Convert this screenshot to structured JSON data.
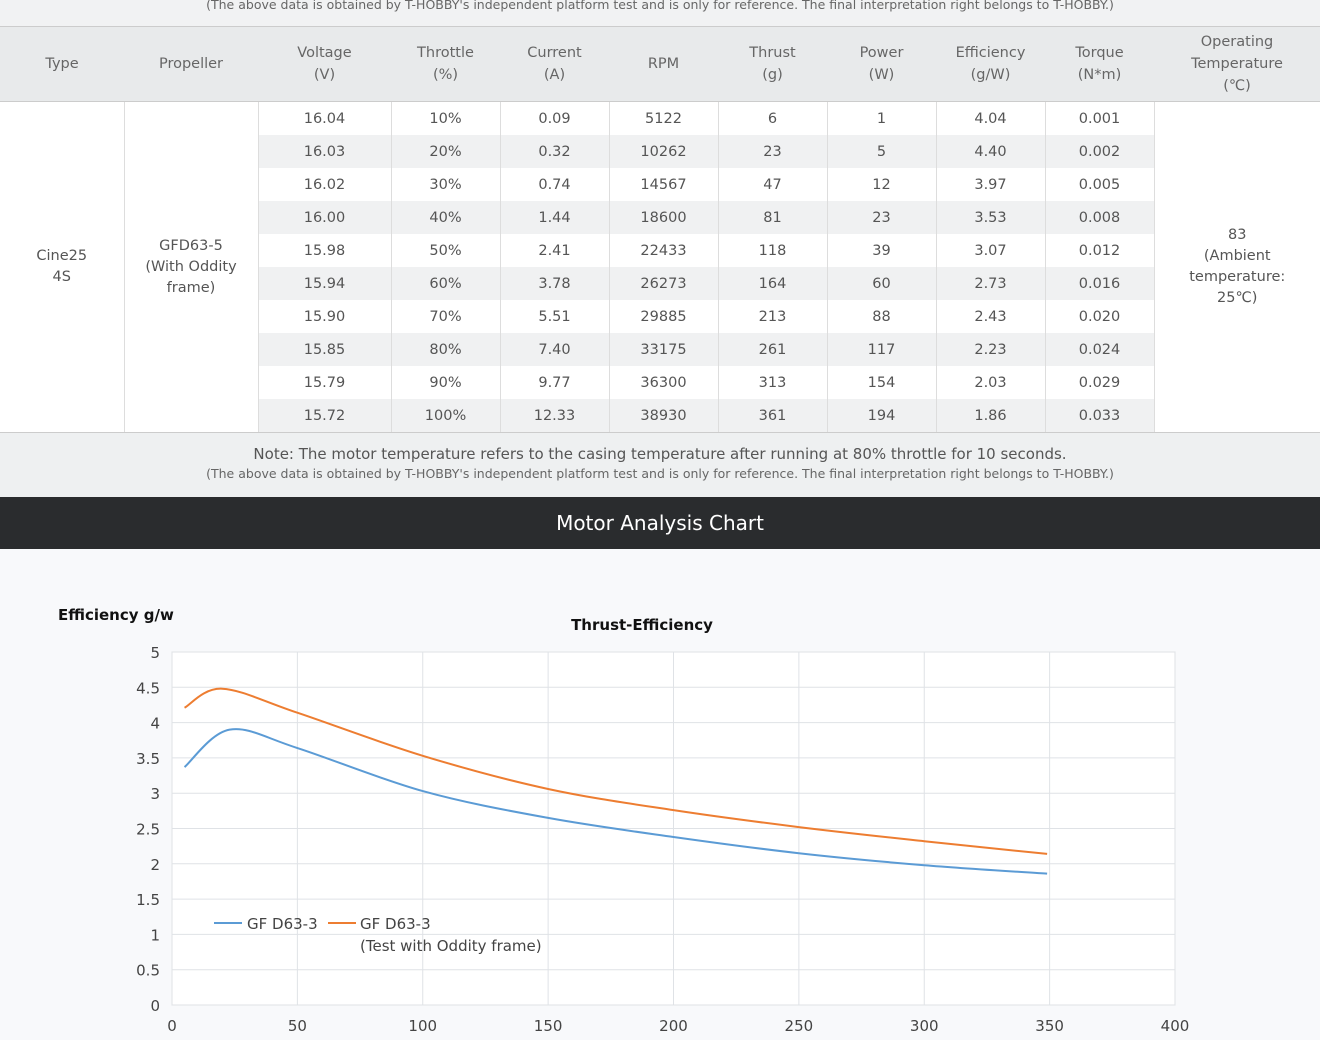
{
  "top_note": "(The above data is obtained by T-HOBBY's independent platform test and is only for reference. The final interpretation right belongs to T-HOBBY.)",
  "table": {
    "headers": [
      [
        "Type"
      ],
      [
        "Propeller"
      ],
      [
        "Voltage",
        "(V)"
      ],
      [
        "Throttle",
        "(%)"
      ],
      [
        "Current",
        "(A)"
      ],
      [
        "RPM"
      ],
      [
        "Thrust",
        "(g)"
      ],
      [
        "Power",
        "(W)"
      ],
      [
        "Efficiency",
        "(g/W)"
      ],
      [
        "Torque",
        "(N*m)"
      ],
      [
        "Operating",
        "Temperature",
        "(℃)"
      ]
    ],
    "type": [
      "Cine25",
      "4S"
    ],
    "propeller": [
      "GFD63-5",
      "(With Oddity",
      "frame)"
    ],
    "temperature": [
      "83",
      "(Ambient",
      "temperature:",
      "25℃)"
    ],
    "rows": [
      [
        "16.04",
        "10%",
        "0.09",
        "5122",
        "6",
        "1",
        "4.04",
        "0.001"
      ],
      [
        "16.03",
        "20%",
        "0.32",
        "10262",
        "23",
        "5",
        "4.40",
        "0.002"
      ],
      [
        "16.02",
        "30%",
        "0.74",
        "14567",
        "47",
        "12",
        "3.97",
        "0.005"
      ],
      [
        "16.00",
        "40%",
        "1.44",
        "18600",
        "81",
        "23",
        "3.53",
        "0.008"
      ],
      [
        "15.98",
        "50%",
        "2.41",
        "22433",
        "118",
        "39",
        "3.07",
        "0.012"
      ],
      [
        "15.94",
        "60%",
        "3.78",
        "26273",
        "164",
        "60",
        "2.73",
        "0.016"
      ],
      [
        "15.90",
        "70%",
        "5.51",
        "29885",
        "213",
        "88",
        "2.43",
        "0.020"
      ],
      [
        "15.85",
        "80%",
        "7.40",
        "33175",
        "261",
        "117",
        "2.23",
        "0.024"
      ],
      [
        "15.79",
        "90%",
        "9.77",
        "36300",
        "313",
        "154",
        "2.03",
        "0.029"
      ],
      [
        "15.72",
        "100%",
        "12.33",
        "38930",
        "361",
        "194",
        "1.86",
        "0.033"
      ]
    ]
  },
  "note": {
    "main": "Note: The motor temperature refers to the casing temperature after running at 80% throttle for 10 seconds.",
    "sub": "(The above data is obtained by T-HOBBY's independent platform test and is only for reference. The final interpretation right belongs to T-HOBBY.)"
  },
  "section_title": "Motor Analysis Chart",
  "chart_data": {
    "type": "line",
    "title": "Thrust-Efficiency",
    "ylabel": "Efficiency g/w",
    "xlabel": "",
    "xlim": [
      0,
      400
    ],
    "ylim": [
      0,
      5
    ],
    "grid": true,
    "legend": "bottom-left",
    "xticks": [
      "0",
      "50",
      "100",
      "150",
      "200",
      "250",
      "300",
      "350",
      "400"
    ],
    "yticks": [
      "0",
      "0.5",
      "1",
      "1.5",
      "2",
      "2.5",
      "3",
      "3.5",
      "4",
      "4.5",
      "5"
    ],
    "series": [
      {
        "name": "GF D63-3",
        "color": "#5b9bd5",
        "x": [
          5,
          23,
          50,
          100,
          150,
          200,
          250,
          300,
          349
        ],
        "y": [
          3.37,
          3.9,
          3.64,
          3.03,
          2.65,
          2.38,
          2.15,
          1.98,
          1.86
        ]
      },
      {
        "name": "GF D63-3",
        "name2": "(Test with Oddity frame)",
        "color": "#ed7d31",
        "x": [
          5,
          20,
          50,
          100,
          150,
          200,
          250,
          300,
          349
        ],
        "y": [
          4.21,
          4.48,
          4.14,
          3.53,
          3.06,
          2.76,
          2.52,
          2.32,
          2.14
        ]
      }
    ]
  }
}
